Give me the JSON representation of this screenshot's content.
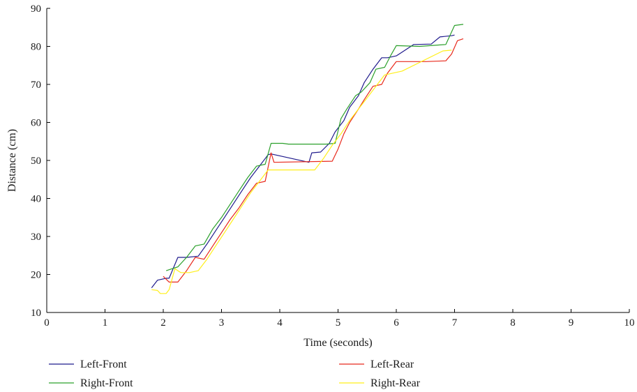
{
  "chart_data": {
    "type": "line",
    "xlabel": "Time (seconds)",
    "ylabel": "Distance (cm)",
    "xlim": [
      0,
      10
    ],
    "ylim": [
      10,
      90
    ],
    "xticks": [
      "0",
      "1",
      "2",
      "3",
      "4",
      "5",
      "6",
      "7",
      "8",
      "9",
      "10"
    ],
    "yticks": [
      "10",
      "20",
      "30",
      "40",
      "50",
      "60",
      "70",
      "80",
      "90"
    ],
    "grid": false,
    "legend_position": "bottom",
    "series": [
      {
        "name": "Left-Front",
        "color": "#1f1a8c",
        "x": [
          1.8,
          1.9,
          2.05,
          2.1,
          2.25,
          2.4,
          2.6,
          2.75,
          2.9,
          3.05,
          3.2,
          3.35,
          3.5,
          3.65,
          3.8,
          3.85,
          4.5,
          4.55,
          4.7,
          4.85,
          4.95,
          5.1,
          5.2,
          5.35,
          5.45,
          5.6,
          5.75,
          5.85,
          6.0,
          6.1,
          6.3,
          6.6,
          6.75,
          6.95,
          7.0
        ],
        "y": [
          16.5,
          18.5,
          19,
          19,
          24.5,
          24.5,
          24.8,
          28,
          31.5,
          35,
          38.5,
          42,
          45.5,
          48.5,
          51.5,
          51.7,
          49.5,
          52,
          52.2,
          54.5,
          57.5,
          60.5,
          64,
          67,
          70.5,
          74,
          77,
          77,
          77.5,
          78.5,
          80.5,
          80.6,
          82.5,
          82.8,
          83
        ]
      },
      {
        "name": "Left-Rear",
        "color": "#e8291c",
        "x": [
          2.0,
          2.1,
          2.25,
          2.4,
          2.55,
          2.7,
          2.85,
          3.0,
          3.15,
          3.3,
          3.45,
          3.6,
          3.75,
          3.85,
          3.9,
          4.9,
          5.0,
          5.1,
          5.2,
          5.35,
          5.45,
          5.6,
          5.75,
          5.85,
          6.0,
          6.5,
          6.85,
          6.95,
          7.05,
          7.15
        ],
        "y": [
          19.5,
          18,
          18,
          21,
          24.5,
          24,
          27.5,
          31,
          34.5,
          37.5,
          41,
          44,
          44.5,
          52,
          49.5,
          49.8,
          53,
          57,
          60,
          63.5,
          66,
          69.5,
          70,
          73,
          76,
          76,
          76.2,
          78,
          81.5,
          82
        ]
      },
      {
        "name": "Right-Front",
        "color": "#2ca02c",
        "x": [
          2.05,
          2.15,
          2.25,
          2.4,
          2.55,
          2.7,
          2.85,
          3.0,
          3.15,
          3.3,
          3.45,
          3.6,
          3.75,
          3.85,
          4.05,
          4.15,
          4.8,
          4.95,
          5.05,
          5.15,
          5.3,
          5.4,
          5.55,
          5.65,
          5.8,
          5.9,
          6.0,
          6.4,
          6.85,
          7.0,
          7.15
        ],
        "y": [
          21,
          21.5,
          22,
          24.5,
          27.5,
          28,
          32,
          35,
          38.5,
          42,
          45.5,
          48.5,
          49,
          54.5,
          54.5,
          54.3,
          54.3,
          54.5,
          61,
          63.5,
          67,
          68,
          70.5,
          74,
          74.5,
          77.5,
          80.2,
          80,
          80.5,
          85.5,
          85.8
        ]
      },
      {
        "name": "Right-Rear",
        "color": "#ffef1a",
        "x": [
          1.8,
          1.9,
          1.95,
          2.05,
          2.1,
          2.2,
          2.3,
          2.45,
          2.6,
          2.75,
          2.9,
          3.05,
          3.2,
          3.35,
          3.5,
          3.65,
          3.8,
          4.0,
          4.6,
          4.75,
          4.9,
          5.05,
          5.2,
          5.35,
          5.5,
          5.65,
          5.8,
          5.95,
          6.1,
          6.8,
          6.95
        ],
        "y": [
          16,
          15.8,
          15,
          15,
          16,
          21.5,
          20.5,
          20.5,
          21,
          24,
          27.5,
          31,
          34.5,
          38,
          41.5,
          44.5,
          47.5,
          47.5,
          47.5,
          50.5,
          54,
          57,
          60.5,
          63.5,
          66.5,
          69.5,
          72.5,
          73,
          73.5,
          78.8,
          79
        ]
      }
    ]
  }
}
